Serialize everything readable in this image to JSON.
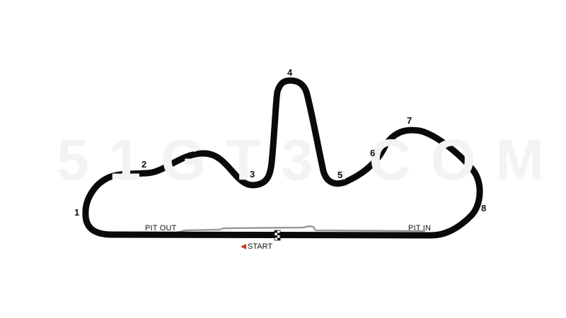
{
  "watermark": "51GT3.COM",
  "colors": {
    "track": "#0a0a0a",
    "pit_lane": "#9a9a9a",
    "start_arrow": "#d9341f",
    "background": "#ffffff"
  },
  "turns": [
    {
      "id": "1",
      "label": "1"
    },
    {
      "id": "2",
      "label": "2"
    },
    {
      "id": "3",
      "label": "3"
    },
    {
      "id": "4",
      "label": "4"
    },
    {
      "id": "5",
      "label": "5"
    },
    {
      "id": "6",
      "label": "6"
    },
    {
      "id": "7",
      "label": "7"
    },
    {
      "id": "8",
      "label": "8"
    }
  ],
  "pit": {
    "out_label": "PIT OUT",
    "in_label": "PIT IN"
  },
  "start": {
    "label": "START",
    "icon": "arrow-left-icon",
    "flag_icon": "checkered-flag-icon"
  }
}
